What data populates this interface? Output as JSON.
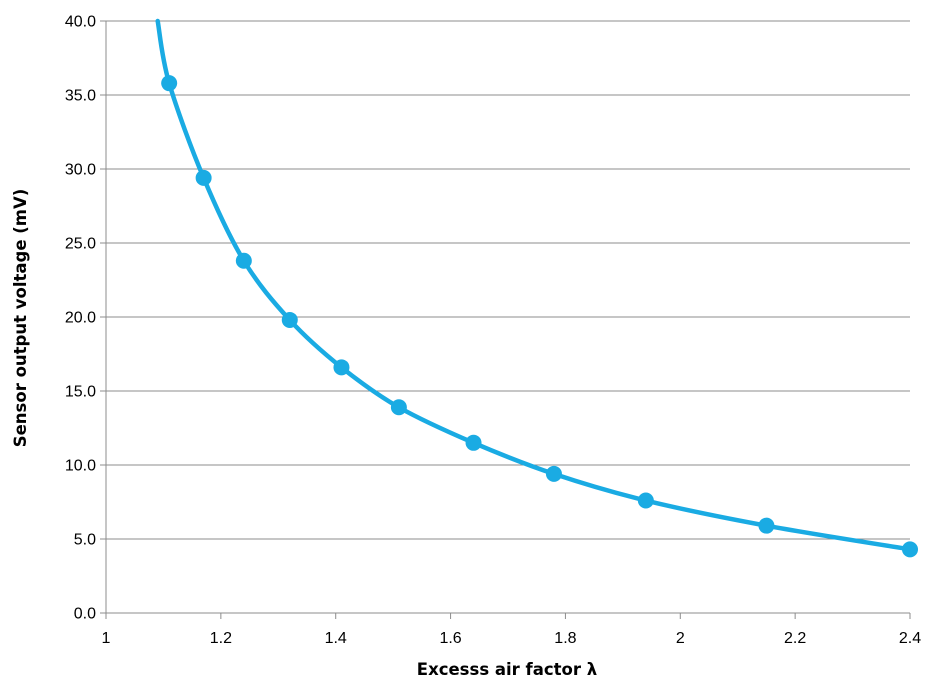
{
  "chart_data": {
    "type": "line",
    "title": "",
    "xlabel": "Excesss air factor λ",
    "ylabel": "Sensor output voltage (mV)",
    "xlim": [
      1,
      2.4
    ],
    "ylim": [
      0,
      40
    ],
    "x_ticks": [
      "1",
      "1.2",
      "1.4",
      "1.6",
      "1.8",
      "2",
      "2.2",
      "2.4"
    ],
    "x_tick_values": [
      1,
      1.2,
      1.4,
      1.6,
      1.8,
      2,
      2.2,
      2.4
    ],
    "y_ticks": [
      "0.0",
      "5.0",
      "10.0",
      "15.0",
      "20.0",
      "25.0",
      "30.0",
      "35.0",
      "40.0"
    ],
    "y_tick_values": [
      0,
      5,
      10,
      15,
      20,
      25,
      30,
      35,
      40
    ],
    "grid": "horizontal",
    "legend": "none",
    "series": [
      {
        "color": "#1aabe3",
        "markers": true,
        "curve_start": [
          1.09,
          40.0
        ],
        "x": [
          1.11,
          1.17,
          1.24,
          1.32,
          1.41,
          1.51,
          1.64,
          1.78,
          1.94,
          2.15,
          2.4
        ],
        "y": [
          35.8,
          29.4,
          23.8,
          19.8,
          16.6,
          13.9,
          11.5,
          9.4,
          7.6,
          5.9,
          4.3
        ]
      }
    ]
  }
}
